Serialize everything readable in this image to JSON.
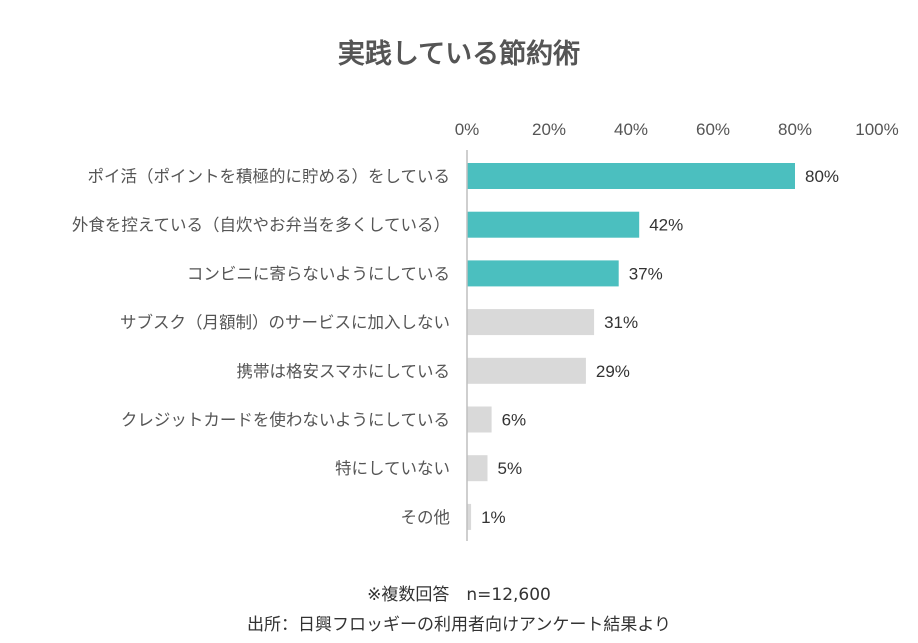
{
  "chart_data": {
    "type": "bar",
    "orientation": "horizontal",
    "title": "実践している節約術",
    "categories": [
      "ポイ活（ポイントを積極的に貯める）をしている",
      "外食を控えている（自炊やお弁当を多くしている）",
      "コンビニに寄らないようにしている",
      "サブスク（月額制）のサービスに加入しない",
      "携帯は格安スマホにしている",
      "クレジットカードを使わないようにしている",
      "特にしていない",
      "その他"
    ],
    "values": [
      80,
      42,
      37,
      31,
      29,
      6,
      5,
      1
    ],
    "value_labels": [
      "80%",
      "42%",
      "37%",
      "31%",
      "29%",
      "6%",
      "5%",
      "1%"
    ],
    "highlight_count": 3,
    "colors": {
      "highlight": "#4bbfbf",
      "default": "#d9d9d9"
    },
    "xlim": [
      0,
      100
    ],
    "x_ticks": [
      "0%",
      "20%",
      "40%",
      "60%",
      "80%",
      "100%"
    ],
    "x_axis_position": "top",
    "grid": false,
    "legend": "none"
  },
  "footnotes": {
    "note": "※複数回答　n=12,600",
    "source": "出所：日興フロッギーの利用者向けアンケート結果より"
  }
}
